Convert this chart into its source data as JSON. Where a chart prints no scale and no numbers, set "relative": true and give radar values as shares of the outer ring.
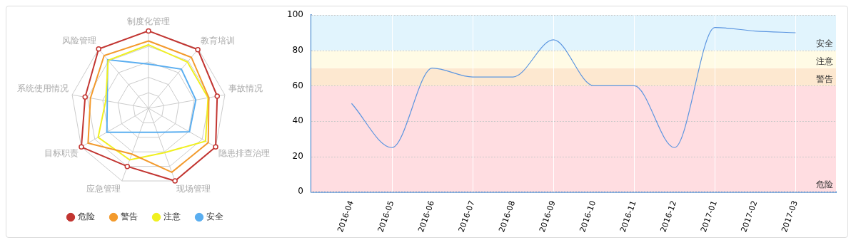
{
  "chart_data": [
    {
      "type": "radar",
      "relative": true,
      "legend": "bottom",
      "grid": true,
      "categories": [
        "制度化管理",
        "教育培训",
        "事故情况",
        "隐患排查治理",
        "现场管理",
        "应急管理",
        "目标职责",
        "系统使用情况",
        "风险管理"
      ],
      "series": [
        {
          "name": "危险",
          "color": "#c23531",
          "marker": "circle",
          "values": [
            1.0,
            0.99,
            0.9,
            1.0,
            1.0,
            0.8,
            1.0,
            0.83,
            1.0
          ]
        },
        {
          "name": "警告",
          "color": "#f39a2c",
          "marker": "none",
          "values": [
            0.87,
            0.86,
            0.79,
            0.89,
            0.88,
            0.63,
            0.9,
            0.76,
            0.89
          ]
        },
        {
          "name": "注意",
          "color": "#f0f020",
          "marker": "none",
          "values": [
            0.82,
            0.78,
            0.78,
            0.85,
            0.61,
            0.71,
            0.75,
            0.56,
            0.81
          ]
        },
        {
          "name": "安全",
          "color": "#5aaef0",
          "marker": "none",
          "values": [
            0.57,
            0.66,
            0.62,
            0.61,
            0.33,
            0.33,
            0.62,
            0.54,
            0.82
          ]
        }
      ]
    },
    {
      "type": "line",
      "legend": false,
      "grid": true,
      "marker": "none",
      "categories": [
        "2016-04",
        "2016-05",
        "2016-06",
        "2016-07",
        "2016-08",
        "2016-09",
        "2016-10",
        "2016-11",
        "2016-12",
        "2017-01",
        "2017-02",
        "2017-03"
      ],
      "series": [
        {
          "color": "#5b95e0",
          "values": [
            50,
            25,
            70,
            65,
            65,
            86,
            60,
            60,
            25,
            93,
            91,
            90
          ]
        }
      ],
      "ylim": [
        0,
        100
      ],
      "yticks": [
        0,
        20,
        40,
        60,
        80,
        100
      ],
      "bands": [
        {
          "axis": "y",
          "from": 0,
          "to": 60,
          "label": "危险",
          "color": "#ffdde1"
        },
        {
          "axis": "y",
          "from": 60,
          "to": 70,
          "label": "警告",
          "color": "#fde8d0"
        },
        {
          "axis": "y",
          "from": 70,
          "to": 80,
          "label": "注意",
          "color": "#fffbe5"
        },
        {
          "axis": "y",
          "from": 80,
          "to": 100,
          "label": "安全",
          "color": "#e1f4fd"
        }
      ]
    }
  ]
}
